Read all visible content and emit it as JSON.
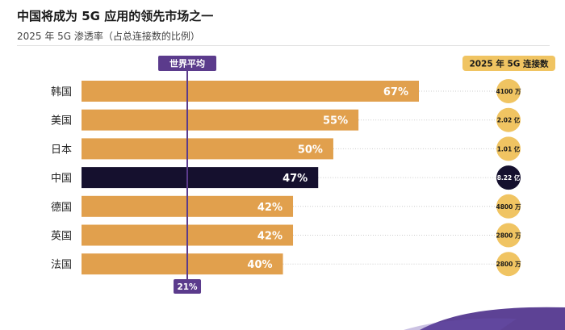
{
  "header": {
    "title": "中国将成为 5G 应用的领先市场之一",
    "subtitle": "2025 年 5G 渗透率（占总连接数的比例）"
  },
  "colors": {
    "bar": "#E1A04D",
    "highlight_bar": "#15102E",
    "world_line": "#5B3B8C",
    "badge": "#5B3B8C",
    "connection_circle": "#F0C462",
    "connection_header": "#F0C462",
    "highlight_circle": "#15102E"
  },
  "chart_data": {
    "type": "bar",
    "orientation": "horizontal",
    "categories": [
      "韩国",
      "美国",
      "日本",
      "中国",
      "德国",
      "英国",
      "法国"
    ],
    "values": [
      67,
      55,
      50,
      47,
      42,
      42,
      40
    ],
    "value_labels": [
      "67%",
      "55%",
      "50%",
      "47%",
      "42%",
      "42%",
      "40%"
    ],
    "highlight": "中国",
    "reference_line": {
      "label": "世界平均",
      "value": 21,
      "value_label": "21%"
    },
    "connections": {
      "header": "2025 年 5G 连接数",
      "values": [
        "4100 万",
        "2.02 亿",
        "1.01 亿",
        "8.22 亿",
        "4800 万",
        "2800 万",
        "2800 万"
      ]
    },
    "xlim": [
      0,
      100
    ],
    "grid": false,
    "legend": "none"
  }
}
